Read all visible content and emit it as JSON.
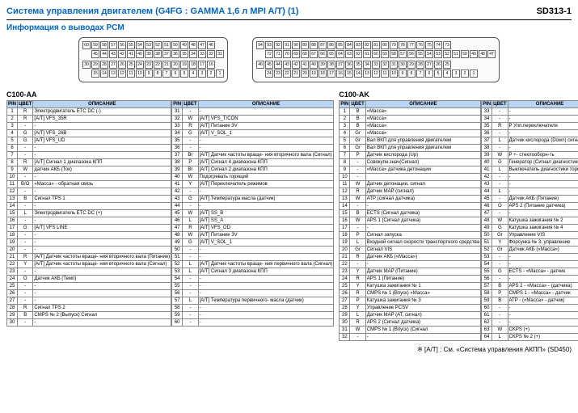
{
  "header": {
    "title": "Система управления двигателем (G4FG : GAMMA 1,6 л MPI A/T) (1)",
    "code": "SD313-1"
  },
  "subtitle": "Информация о выводах PCM",
  "connectorA": {
    "label": "C100-AA",
    "topRow": [
      60,
      59,
      58,
      57,
      56,
      55,
      54,
      53,
      52,
      51,
      50,
      49,
      48,
      47,
      46,
      ""
    ],
    "midRow": [
      "",
      45,
      44,
      43,
      42,
      41,
      40,
      39,
      38,
      37,
      36,
      35,
      34,
      33,
      32,
      31
    ],
    "botRow1": [
      30,
      29,
      28,
      27,
      26,
      25,
      24,
      23,
      22,
      21,
      20,
      19,
      18,
      17,
      16,
      ""
    ],
    "botRow2": [
      "",
      15,
      14,
      13,
      12,
      11,
      10,
      9,
      8,
      7,
      6,
      5,
      4,
      3,
      2,
      1
    ]
  },
  "connectorB": {
    "label": "C100-AK",
    "topRow": [
      94,
      93,
      92,
      91,
      90,
      89,
      88,
      87,
      86,
      85,
      84,
      83,
      82,
      81,
      80,
      79,
      78,
      77,
      76,
      75,
      74,
      73,
      "",
      ""
    ],
    "midRow": [
      "",
      72,
      71,
      70,
      69,
      68,
      67,
      66,
      65,
      64,
      63,
      62,
      61,
      60,
      59,
      58,
      57,
      56,
      55,
      54,
      53,
      52,
      51,
      50,
      49,
      48,
      47
    ],
    "botRow1": [
      46,
      45,
      44,
      43,
      42,
      41,
      40,
      39,
      38,
      37,
      36,
      35,
      34,
      33,
      32,
      31,
      30,
      29,
      28,
      27,
      26,
      25,
      ""
    ],
    "botRow2": [
      "",
      24,
      23,
      22,
      21,
      20,
      19,
      18,
      17,
      16,
      15,
      14,
      13,
      12,
      11,
      10,
      9,
      8,
      7,
      6,
      5,
      4,
      3,
      2,
      1
    ]
  },
  "tableHeaders": {
    "pin": "PIN",
    "color": "ЦВЕТ",
    "desc": "ОПИСАНИЕ"
  },
  "tableAA": {
    "title": "C100-AA",
    "left": [
      {
        "pin": "1",
        "color": "R",
        "desc": "Электродвигатель ETC DC (-)"
      },
      {
        "pin": "2",
        "color": "R",
        "desc": "[А/Т] VFS_35R"
      },
      {
        "pin": "3",
        "color": "-",
        "desc": "-"
      },
      {
        "pin": "4",
        "color": "G",
        "desc": "[А/Т] VFS_26B"
      },
      {
        "pin": "5",
        "color": "G",
        "desc": "[А/Т] VFS_UD"
      },
      {
        "pin": "6",
        "color": "-",
        "desc": "-"
      },
      {
        "pin": "7",
        "color": "-",
        "desc": "-"
      },
      {
        "pin": "8",
        "color": "R",
        "desc": "[А/Т] Сигнал 1 диапазона КПП"
      },
      {
        "pin": "9",
        "color": "W",
        "desc": "датчик АКБ (Ток)"
      },
      {
        "pin": "10",
        "color": "-",
        "desc": "-"
      },
      {
        "pin": "11",
        "color": "B/O",
        "desc": "«Масса» - обратная связь"
      },
      {
        "pin": "12",
        "color": "-",
        "desc": "-"
      },
      {
        "pin": "13",
        "color": "B",
        "desc": "Сигнал TPS 1"
      },
      {
        "pin": "14",
        "color": "-",
        "desc": "-"
      },
      {
        "pin": "15",
        "color": "L",
        "desc": "Электродвигатель ETC DC (+)"
      },
      {
        "pin": "16",
        "color": "-",
        "desc": "-"
      },
      {
        "pin": "17",
        "color": "G",
        "desc": "[А/Т] VFS LINE"
      },
      {
        "pin": "18",
        "color": "-",
        "desc": "-"
      },
      {
        "pin": "19",
        "color": "-",
        "desc": "-"
      },
      {
        "pin": "20",
        "color": "-",
        "desc": "-"
      },
      {
        "pin": "21",
        "color": "R",
        "desc": "[А/Т] Датчик частоты враще- ния вторичного вала (Питание)"
      },
      {
        "pin": "22",
        "color": "Y",
        "desc": "[А/Т] Датчик частоты враще- ния вторичного вала (Сигнал)"
      },
      {
        "pin": "23",
        "color": "-",
        "desc": "-"
      },
      {
        "pin": "24",
        "color": "O",
        "desc": "Датчик АКБ (Темп)"
      },
      {
        "pin": "25",
        "color": "-",
        "desc": "-"
      },
      {
        "pin": "26",
        "color": "-",
        "desc": "-"
      },
      {
        "pin": "27",
        "color": "-",
        "desc": "-"
      },
      {
        "pin": "28",
        "color": "R",
        "desc": "Сигнал TPS 2"
      },
      {
        "pin": "29",
        "color": "B",
        "desc": "CMPS № 2 (Выпуск) Сигнал"
      },
      {
        "pin": "30",
        "color": "-",
        "desc": "-"
      }
    ],
    "right": [
      {
        "pin": "31",
        "color": "-",
        "desc": "-"
      },
      {
        "pin": "32",
        "color": "W",
        "desc": "[А/Т] VFS_T/CON"
      },
      {
        "pin": "33",
        "color": "R",
        "desc": "[А/Т] Питание 3V"
      },
      {
        "pin": "34",
        "color": "G",
        "desc": "[А/Т] V_SOL_1"
      },
      {
        "pin": "35",
        "color": "-",
        "desc": "-"
      },
      {
        "pin": "36",
        "color": "-",
        "desc": "-"
      },
      {
        "pin": "37",
        "color": "Br",
        "desc": "[А/Т] Датчик частоты враще- ния вторичного вала (Сигнал)"
      },
      {
        "pin": "38",
        "color": "P",
        "desc": "[А/Т] Сигнал 4 диапазона КПП"
      },
      {
        "pin": "39",
        "color": "Br",
        "desc": "[А/Т] Сигнал 2 диапазона КПП"
      },
      {
        "pin": "40",
        "color": "W",
        "desc": "Подогревать горящий"
      },
      {
        "pin": "41",
        "color": "Y",
        "desc": "[А/Т] Переключатель режимов"
      },
      {
        "pin": "42",
        "color": "-",
        "desc": "-"
      },
      {
        "pin": "43",
        "color": "G",
        "desc": "[А/Т] Температура масла (датчик)"
      },
      {
        "pin": "44",
        "color": "-",
        "desc": "-"
      },
      {
        "pin": "45",
        "color": "W",
        "desc": "[А/Т] SS_B"
      },
      {
        "pin": "46",
        "color": "L",
        "desc": "[А/Т] SS_A"
      },
      {
        "pin": "47",
        "color": "R",
        "desc": "[А/Т] VFS_OD"
      },
      {
        "pin": "48",
        "color": "W",
        "desc": "[А/Т] Питание 3V"
      },
      {
        "pin": "49",
        "color": "G",
        "desc": "[А/Т] V_SOL_1"
      },
      {
        "pin": "50",
        "color": "-",
        "desc": "-"
      },
      {
        "pin": "51",
        "color": "-",
        "desc": "-"
      },
      {
        "pin": "52",
        "color": "L",
        "desc": "[А/Т] Датчик частоты враще- ния первичного вала (Сигнал)"
      },
      {
        "pin": "53",
        "color": "L",
        "desc": "[А/Т] Сигнал 3 диапазона КПП"
      },
      {
        "pin": "54",
        "color": "-",
        "desc": "-"
      },
      {
        "pin": "55",
        "color": "-",
        "desc": "-"
      },
      {
        "pin": "56",
        "color": "-",
        "desc": "-"
      },
      {
        "pin": "57",
        "color": "L",
        "desc": "[А/Т] Температура первичного- масла (датчик)"
      },
      {
        "pin": "58",
        "color": "-",
        "desc": "-"
      },
      {
        "pin": "59",
        "color": "-",
        "desc": "-"
      },
      {
        "pin": "60",
        "color": "-",
        "desc": "-"
      }
    ]
  },
  "tableAK": {
    "title": "C100-AK",
    "col1": [
      {
        "pin": "1",
        "color": "B",
        "desc": "«Масса»"
      },
      {
        "pin": "2",
        "color": "B",
        "desc": "«Масса»"
      },
      {
        "pin": "3",
        "color": "B",
        "desc": "«Масса»"
      },
      {
        "pin": "4",
        "color": "Gr",
        "desc": "«Масса»"
      },
      {
        "pin": "5",
        "color": "Gr",
        "desc": "Вал ВКП для управления двигателем"
      },
      {
        "pin": "6",
        "color": "Gr",
        "desc": "Вал ВКП для управления двигателем"
      },
      {
        "pin": "7",
        "color": "P",
        "desc": "Датчик кислорода (Up)"
      },
      {
        "pin": "8",
        "color": "-",
        "desc": "Совокупн.знач(Сигнал)"
      },
      {
        "pin": "9",
        "color": "-",
        "desc": "«Масса» датчика детонации"
      },
      {
        "pin": "10",
        "color": "-",
        "desc": ""
      },
      {
        "pin": "11",
        "color": "W",
        "desc": "Датчик детонации, сигнал"
      },
      {
        "pin": "12",
        "color": "R",
        "desc": "Датчик MAP (сигнал)"
      },
      {
        "pin": "13",
        "color": "W",
        "desc": "АТР (сигнал датчика)"
      },
      {
        "pin": "14",
        "color": "-",
        "desc": "-"
      },
      {
        "pin": "15",
        "color": "B",
        "desc": "ECTS (Сигнал датчика)"
      },
      {
        "pin": "16",
        "color": "W",
        "desc": "APS 1 (Сигнал датчика)"
      },
      {
        "pin": "17",
        "color": "-",
        "desc": "-"
      },
      {
        "pin": "18",
        "color": "P",
        "desc": "Сигнал запуска"
      },
      {
        "pin": "19",
        "color": "L",
        "desc": "Входной сигнал скорости транспортного средства"
      },
      {
        "pin": "20",
        "color": "Gr",
        "desc": "Сигнал VIS"
      },
      {
        "pin": "21",
        "color": "R",
        "desc": "Датчик АКБ («Масса»)"
      },
      {
        "pin": "22",
        "color": "-",
        "desc": "-"
      },
      {
        "pin": "23",
        "color": "Y",
        "desc": "Датчик MAP (Питание)"
      },
      {
        "pin": "24",
        "color": "R",
        "desc": "APS 1 (Питание)"
      },
      {
        "pin": "25",
        "color": "Y",
        "desc": "Катушка зажигания № 1"
      },
      {
        "pin": "26",
        "color": "R",
        "desc": "CMPS № 1 (Впуск) «Масса»"
      },
      {
        "pin": "27",
        "color": "P",
        "desc": "Катушка зажигания № 3"
      },
      {
        "pin": "28",
        "color": "Y",
        "desc": "Управление PCSV"
      },
      {
        "pin": "29",
        "color": "L",
        "desc": "Датчик MAP (AT, сигнал)"
      },
      {
        "pin": "30",
        "color": "R",
        "desc": "APS 2 (Сигнал датчика)"
      },
      {
        "pin": "31",
        "color": "W",
        "desc": "CMPS № 1 (Впуск) (Сигнал"
      },
      {
        "pin": "32",
        "color": "-",
        "desc": "-"
      }
    ],
    "col2": [
      {
        "pin": "33",
        "color": "-",
        "desc": "-"
      },
      {
        "pin": "34",
        "color": "-",
        "desc": "-"
      },
      {
        "pin": "35",
        "color": "R",
        "desc": "Р Улп.переключателя"
      },
      {
        "pin": "36",
        "color": "-",
        "desc": "-"
      },
      {
        "pin": "37",
        "color": "L",
        "desc": "Датчик кислорода (Down) сигнал"
      },
      {
        "pin": "38",
        "color": "-",
        "desc": "-"
      },
      {
        "pin": "39",
        "color": "W",
        "desc": "Р +- стеклооборн-ть"
      },
      {
        "pin": "40",
        "color": "G",
        "desc": "Генератор (Сигнал диагностики)"
      },
      {
        "pin": "41",
        "color": "L",
        "desc": "Выключатель диагностики тормозов"
      },
      {
        "pin": "42",
        "color": "-",
        "desc": "-"
      },
      {
        "pin": "43",
        "color": "-",
        "desc": "-"
      },
      {
        "pin": "44",
        "color": "L",
        "desc": "-"
      },
      {
        "pin": "45",
        "color": "-",
        "desc": "Датчик АКБ (Питание)"
      },
      {
        "pin": "46",
        "color": "O",
        "desc": "APS 2 (Питание датчика)"
      },
      {
        "pin": "47",
        "color": "-",
        "desc": "-"
      },
      {
        "pin": "48",
        "color": "W",
        "desc": "Катушка зажигания № 2"
      },
      {
        "pin": "49",
        "color": "G",
        "desc": "Катушка зажигания № 4"
      },
      {
        "pin": "50",
        "color": "Gr",
        "desc": "Управление VIS"
      },
      {
        "pin": "51",
        "color": "Y",
        "desc": "Форсунка № 3, управление"
      },
      {
        "pin": "52",
        "color": "Gr",
        "desc": "Датчик АКБ («Масса»)"
      },
      {
        "pin": "53",
        "color": "-",
        "desc": "-"
      },
      {
        "pin": "54",
        "color": "-",
        "desc": "-"
      },
      {
        "pin": "55",
        "color": "G",
        "desc": "ECTS - «Масса» - датчик"
      },
      {
        "pin": "56",
        "color": "-",
        "desc": "-"
      },
      {
        "pin": "57",
        "color": "B",
        "desc": "APS 2 - «Масса» - (датчика)"
      },
      {
        "pin": "58",
        "color": "P",
        "desc": "CMPS 1 - «Масса» - датчик"
      },
      {
        "pin": "59",
        "color": "B",
        "desc": "АТР - («Масса» - датчик)"
      },
      {
        "pin": "60",
        "color": "-",
        "desc": "-"
      },
      {
        "pin": "61",
        "color": "-",
        "desc": "-"
      },
      {
        "pin": "62",
        "color": "-",
        "desc": "-"
      },
      {
        "pin": "63",
        "color": "W",
        "desc": "CKPS (+)"
      },
      {
        "pin": "64",
        "color": "L",
        "desc": "CKPS № 2 (+)"
      }
    ],
    "col3": [
      {
        "pin": "65",
        "color": "P",
        "desc": "Форсунка № 4, управление"
      },
      {
        "pin": "66",
        "color": "G",
        "desc": "Форсунка № 1, управление"
      },
      {
        "pin": "67",
        "color": "B",
        "desc": "Управление реле вент.охл.(High)"
      },
      {
        "pin": "68",
        "color": "G",
        "desc": "Генератор (PWM)"
      },
      {
        "pin": "69",
        "color": "Br",
        "desc": "Реле стартера"
      },
      {
        "pin": "70",
        "color": "Br",
        "desc": "Управление реле вентиля- тора охлаждения (Low)"
      },
      {
        "pin": "71",
        "color": "Y",
        "desc": "Датчик кислорода (Down) нагревательный элемент"
      },
      {
        "pin": "72",
        "color": "-",
        "desc": "-"
      },
      {
        "pin": "73",
        "color": "-",
        "desc": "-"
      },
      {
        "pin": "74",
        "color": "P",
        "desc": "Вход ON/START"
      },
      {
        "pin": "75",
        "color": "P",
        "desc": "Датчик MAP «Масса» датчика)"
      },
      {
        "pin": "76",
        "color": "-",
        "desc": "-"
      },
      {
        "pin": "77",
        "color": "-",
        "desc": "-"
      },
      {
        "pin": "78",
        "color": "-",
        "desc": "-"
      },
      {
        "pin": "79",
        "color": "L",
        "desc": "Датчик кислорода (Down) «Масса»"
      },
      {
        "pin": "80",
        "color": "Gr",
        "desc": "«Масса» - TPS"
      },
      {
        "pin": "81",
        "color": "L",
        "desc": "O2 Датчик (UP)"
      },
      {
        "pin": "82",
        "color": "L",
        "desc": "C-CAN (Low)"
      },
      {
        "pin": "83",
        "color": "W",
        "desc": "Smatra-IMMO."
      },
      {
        "pin": "84",
        "color": "-",
        "desc": "-"
      },
      {
        "pin": "85",
        "color": "Br",
        "desc": "CKPS (-)"
      },
      {
        "pin": "86",
        "color": "L",
        "desc": "CMPS № 2 (Выпуск) «Масса»"
      },
      {
        "pin": "87",
        "color": "-",
        "desc": "-"
      },
      {
        "pin": "88",
        "color": "Br/O",
        "desc": "Контроль реле управления двигателем"
      },
      {
        "pin": "89",
        "color": "Y",
        "desc": "Форсунка № 2, управление"
      },
      {
        "pin": "90",
        "color": "L",
        "desc": "Управление реле топливного насоса"
      },
      {
        "pin": "91",
        "color": "G",
        "desc": "CVVT 1 (High)"
      },
      {
        "pin": "92",
        "color": "L",
        "desc": "CVVT 2 (Выпуск)"
      },
      {
        "pin": "93",
        "color": "Y",
        "desc": "Сигнал частоты вращения коленчатого вала"
      },
      {
        "pin": "94",
        "color": "-",
        "desc": "-"
      }
    ]
  },
  "footnote": "※ [А/Т] : См. «Система управления АКПП» (SD450)"
}
